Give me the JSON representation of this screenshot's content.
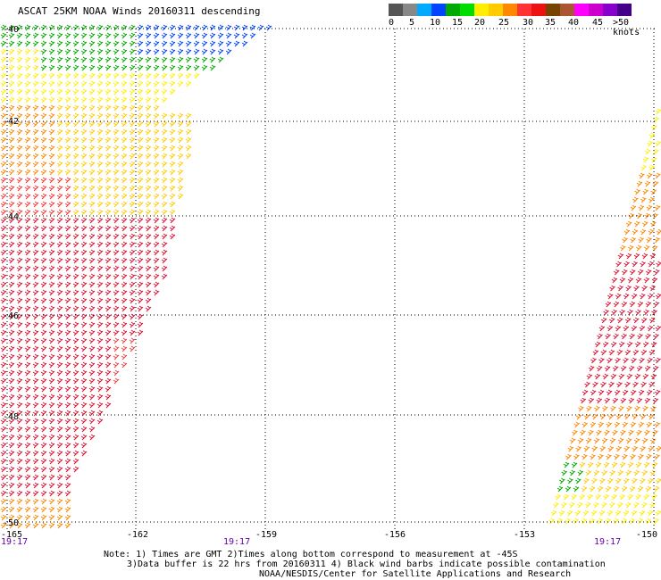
{
  "title": "ASCAT 25KM NOAA Winds 20160311 descending",
  "legend": {
    "colors": [
      "#555555",
      "#888888",
      "#00aaff",
      "#0044ff",
      "#00aa00",
      "#00dd00",
      "#ffee00",
      "#ffcc00",
      "#ff8800",
      "#ff3333",
      "#ee1111",
      "#774400",
      "#aa5533",
      "#ff00ff",
      "#cc00cc",
      "#8800cc",
      "#440088"
    ],
    "labels": [
      "0",
      "5",
      "10",
      "15",
      "20",
      "25",
      "30",
      "35",
      "40",
      "45",
      ">50 knots"
    ]
  },
  "axes": {
    "lat_labels": [
      "-40",
      "-42",
      "-44",
      "-46",
      "-48",
      "-50"
    ],
    "lon_labels": [
      "-165",
      "-162",
      "-159",
      "-156",
      "-153",
      "-150"
    ]
  },
  "times": {
    "left": "19:17",
    "mid": "19:17",
    "right": "19:17"
  },
  "notes": {
    "line1": "Note: 1) Times are GMT 2)Times along bottom correspond to measurement at -45S",
    "line2": "3)Data buffer is 22 hrs from 20160311 4) Black wind barbs indicate possible contamination",
    "line3": "NOAA/NESDIS/Center for Satellite Applications and Research"
  }
}
